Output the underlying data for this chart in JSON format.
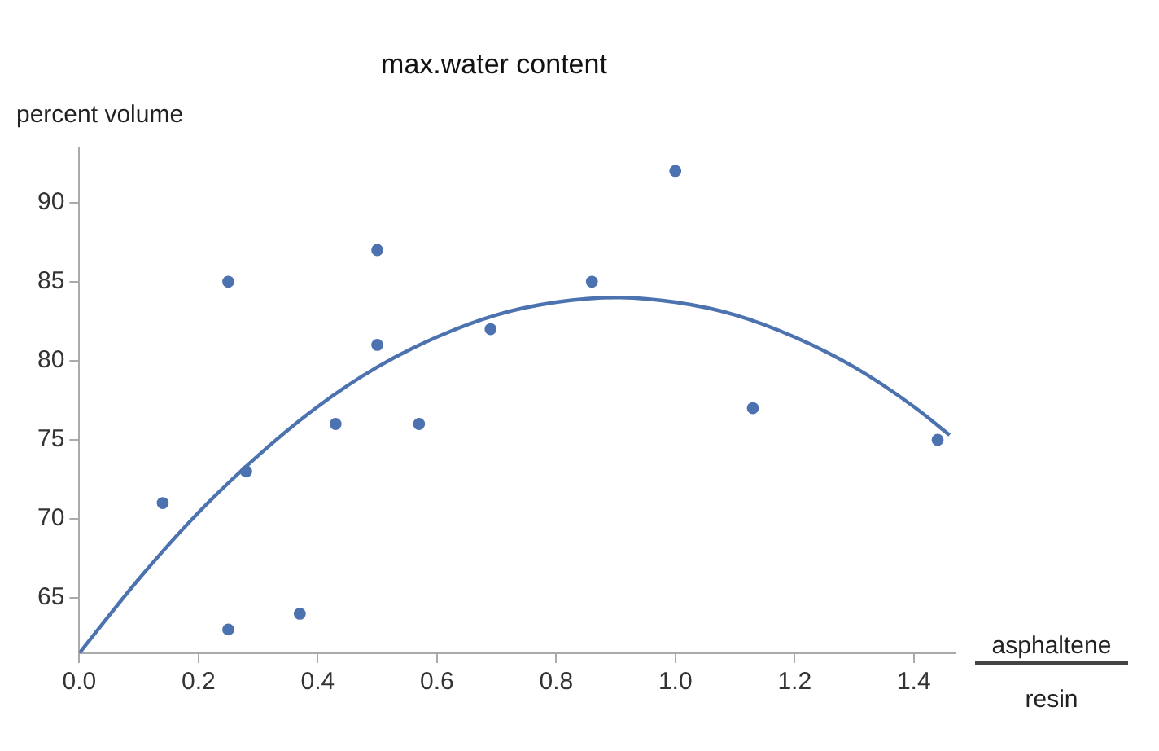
{
  "chart_data": {
    "type": "scatter",
    "title": "max.water content",
    "xlabel": "asphaltene resin",
    "ylabel": "percent volume",
    "xlim": [
      0,
      1.47
    ],
    "ylim": [
      61.5,
      93.5
    ],
    "xticks": [
      {
        "value": 0,
        "label": "0.0"
      },
      {
        "value": 0.2,
        "label": "0.2"
      },
      {
        "value": 0.4,
        "label": "0.4"
      },
      {
        "value": 0.6,
        "label": "0.6"
      },
      {
        "value": 0.8,
        "label": "0.8"
      },
      {
        "value": 1,
        "label": "1.0"
      },
      {
        "value": 1.2,
        "label": "1.2"
      },
      {
        "value": 1.4,
        "label": "1.4"
      }
    ],
    "yticks": [
      65,
      70,
      75,
      80,
      85,
      90
    ],
    "grid": false,
    "legend": false,
    "marker": "circle",
    "series": [
      {
        "color": "#4c72b0",
        "x": [
          0.14,
          0.25,
          0.25,
          0.28,
          0.37,
          0.43,
          0.5,
          0.5,
          0.57,
          0.69,
          0.86,
          1.0,
          1.13,
          1.44
        ],
        "values": [
          71,
          85,
          63,
          73,
          64,
          76,
          87,
          81,
          76,
          82,
          85,
          92,
          77,
          75
        ]
      },
      {
        "type": "line",
        "color": "#4c72b0",
        "marker": "none",
        "line_style": "solid",
        "x": [
          0,
          0.1,
          0.2,
          0.3,
          0.4,
          0.5,
          0.6,
          0.7,
          0.8,
          0.9,
          1.0,
          1.1,
          1.2,
          1.3,
          1.4,
          1.46
        ],
        "values": [
          61.5,
          66.2,
          70.4,
          74.0,
          77.1,
          79.6,
          81.5,
          82.9,
          83.7,
          84.0,
          83.7,
          82.9,
          81.5,
          79.6,
          77.1,
          75.3
        ]
      }
    ]
  }
}
